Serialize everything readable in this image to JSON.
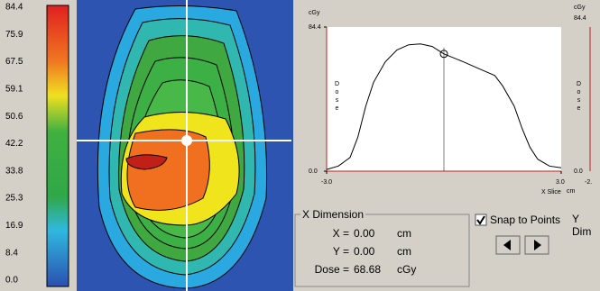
{
  "colorbar": {
    "labels": [
      "84.4",
      "75.9",
      "67.5",
      "59.1",
      "50.6",
      "42.2",
      "33.8",
      "25.3",
      "16.9",
      "8.4",
      "0.0"
    ]
  },
  "profile": {
    "unit": "cGy",
    "y_axis_label": "Dose",
    "x_axis_label": "X Slice",
    "x_unit": "cm",
    "xlim": [
      -3,
      3
    ],
    "ylim": [
      0,
      84.4
    ],
    "xticks": [
      {
        "value": -3,
        "label": "-3.0"
      },
      {
        "value": 3,
        "label": "3.0"
      }
    ],
    "yticks": [
      {
        "value": 0,
        "label": "0.0"
      },
      {
        "value": 84.4,
        "label": "84.4"
      }
    ],
    "x": [
      -3.0,
      -2.7,
      -2.4,
      -2.2,
      -2.0,
      -1.8,
      -1.5,
      -1.2,
      -0.9,
      -0.6,
      -0.3,
      0,
      0.5,
      1.0,
      1.3,
      1.5,
      1.8,
      2.0,
      2.2,
      2.4,
      2.7,
      3.0
    ],
    "y": [
      1,
      3,
      8,
      20,
      38,
      52,
      64,
      71,
      74,
      74.5,
      73,
      68.68,
      64,
      59,
      56,
      50,
      38,
      25,
      14,
      7,
      3,
      2
    ]
  },
  "side_panel": {
    "unit": "cGy",
    "top_label": "84.4",
    "axis_label": "Dose",
    "bottom_label": "0.0",
    "x_label": "-2.",
    "dim_label": "Y Dim"
  },
  "readout": {
    "title": "X Dimension",
    "rows": [
      {
        "label": "X =",
        "value": "0.00",
        "unit": "cm"
      },
      {
        "label": "Y =",
        "value": "0.00",
        "unit": "cm"
      },
      {
        "label": "Dose =",
        "value": "68.68",
        "unit": "cGy"
      }
    ]
  },
  "snap": {
    "label": "Snap to Points",
    "checked": true
  }
}
